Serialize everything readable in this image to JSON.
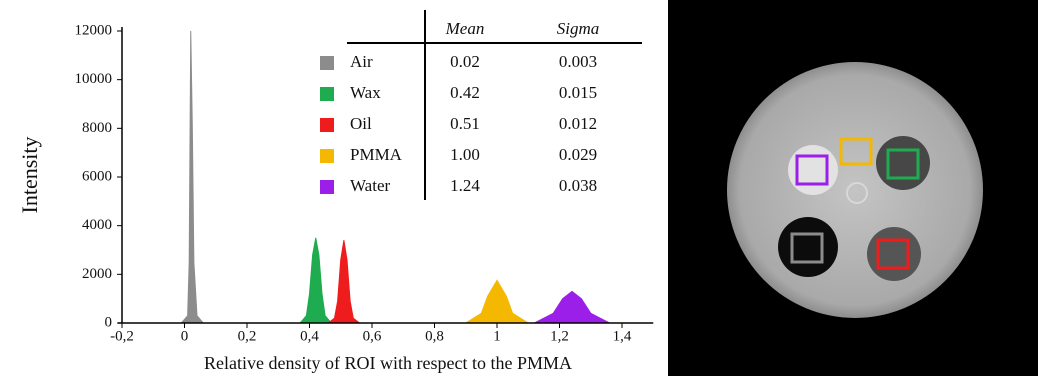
{
  "chart_data": {
    "type": "area",
    "ylabel": "Intensity",
    "xlabel": "Relative density of ROI with respect to the PMMA",
    "xlim": [
      -0.2,
      1.5
    ],
    "ylim": [
      0,
      12000
    ],
    "xticks": [
      {
        "value": -0.2,
        "label": "-0,2"
      },
      0,
      {
        "value": 0.2,
        "label": "0,2"
      },
      {
        "value": 0.4,
        "label": "0,4"
      },
      {
        "value": 0.6,
        "label": "0,6"
      },
      {
        "value": 0.8,
        "label": "0,8"
      },
      1,
      {
        "value": 1.2,
        "label": "1,2"
      },
      {
        "value": 1.4,
        "label": "1,4"
      }
    ],
    "yticks": [
      0,
      2000,
      4000,
      6000,
      8000,
      10000,
      12000
    ],
    "series": [
      {
        "name": "Air",
        "color": "#8c8c8c",
        "x": [
          -0.01,
          0.01,
          0.015,
          0.02,
          0.025,
          0.03,
          0.04,
          0.06
        ],
        "values": [
          0,
          300,
          2500,
          12000,
          8100,
          2500,
          300,
          0
        ]
      },
      {
        "name": "Wax",
        "color": "#1fab4f",
        "x": [
          0.37,
          0.39,
          0.4,
          0.41,
          0.42,
          0.43,
          0.44,
          0.45,
          0.47
        ],
        "values": [
          0,
          300,
          1200,
          2800,
          3500,
          2800,
          1200,
          300,
          0
        ]
      },
      {
        "name": "Oil",
        "color": "#ee1c1c",
        "x": [
          0.46,
          0.48,
          0.49,
          0.5,
          0.51,
          0.52,
          0.53,
          0.54,
          0.56
        ],
        "values": [
          0,
          200,
          900,
          2600,
          3400,
          2600,
          900,
          200,
          0
        ]
      },
      {
        "name": "PMMA",
        "color": "#f5b800",
        "x": [
          0.9,
          0.95,
          0.97,
          1.0,
          1.03,
          1.05,
          1.1
        ],
        "values": [
          0,
          400,
          1100,
          1750,
          1100,
          400,
          0
        ]
      },
      {
        "name": "Water",
        "color": "#9b1fe8",
        "x": [
          1.12,
          1.18,
          1.21,
          1.24,
          1.27,
          1.3,
          1.36
        ],
        "values": [
          0,
          400,
          1000,
          1300,
          1000,
          400,
          0
        ]
      }
    ],
    "table": {
      "columns": [
        "Mean",
        "Sigma"
      ],
      "rows": [
        [
          "0.02",
          "0.003"
        ],
        [
          "0.42",
          "0.015"
        ],
        [
          "0.51",
          "0.012"
        ],
        [
          "1.00",
          "0.029"
        ],
        [
          "1.24",
          "0.038"
        ]
      ]
    }
  }
}
